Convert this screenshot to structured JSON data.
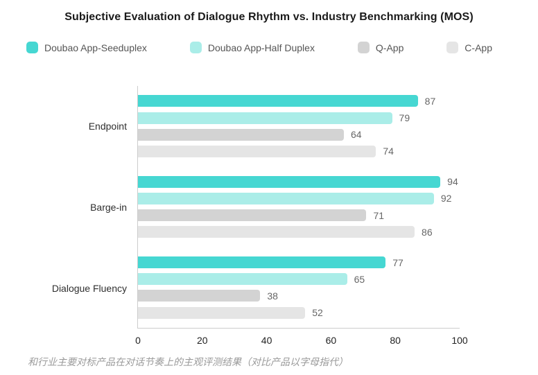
{
  "title": "Subjective Evaluation of Dialogue Rhythm vs. Industry Benchmarking (MOS)",
  "legend": [
    {
      "label": "Doubao App-Seeduplex",
      "color": "#46d7d2"
    },
    {
      "label": "Doubao App-Half Duplex",
      "color": "#aaede8"
    },
    {
      "label": "Q-App",
      "color": "#d3d3d3"
    },
    {
      "label": "C-App",
      "color": "#e5e5e5"
    }
  ],
  "chart_data": {
    "type": "bar",
    "orientation": "horizontal",
    "title": "Subjective Evaluation of Dialogue Rhythm vs. Industry Benchmarking (MOS)",
    "categories": [
      "Endpoint",
      "Barge-in",
      "Dialogue Fluency"
    ],
    "series": [
      {
        "name": "Doubao App-Seeduplex",
        "color": "#46d7d2",
        "values": [
          87,
          94,
          77
        ]
      },
      {
        "name": "Doubao App-Half Duplex",
        "color": "#aaede8",
        "values": [
          79,
          92,
          65
        ]
      },
      {
        "name": "Q-App",
        "color": "#d3d3d3",
        "values": [
          64,
          71,
          38
        ]
      },
      {
        "name": "C-App",
        "color": "#e5e5e5",
        "values": [
          74,
          86,
          52
        ]
      }
    ],
    "xlim": [
      0,
      100
    ],
    "x_ticks": [
      0,
      20,
      40,
      60,
      80,
      100
    ],
    "xlabel": "",
    "ylabel": "",
    "grid": false,
    "legend_position": "top",
    "value_labels": true
  },
  "caption": "和行业主要对标产品在对话节奏上的主观评测结果（对比产品以字母指代）"
}
